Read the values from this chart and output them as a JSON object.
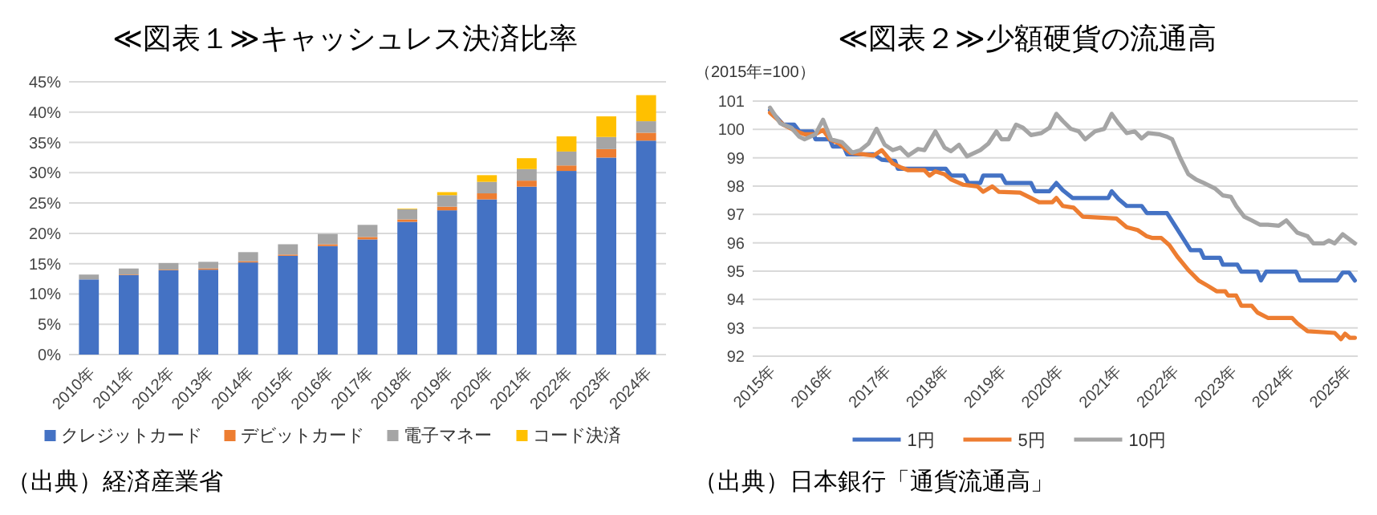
{
  "chart_data": [
    {
      "type": "bar",
      "title": "≪図表１≫キャッシュレス決済比率",
      "stacked": true,
      "grid": "y",
      "legend": "bottom",
      "categories": [
        "2010年",
        "2011年",
        "2012年",
        "2013年",
        "2014年",
        "2015年",
        "2016年",
        "2017年",
        "2018年",
        "2019年",
        "2020年",
        "2021年",
        "2022年",
        "2023年",
        "2024年"
      ],
      "series": [
        {
          "name": "クレジットカード",
          "color": "#4472c4",
          "values": [
            12.4,
            13.1,
            13.9,
            14.0,
            15.2,
            16.3,
            17.9,
            19.0,
            21.9,
            23.8,
            25.6,
            27.7,
            30.3,
            32.5,
            35.3
          ]
        },
        {
          "name": "デビットカード",
          "color": "#ed7d31",
          "values": [
            null,
            0.1,
            0.1,
            0.2,
            0.2,
            0.2,
            0.3,
            0.4,
            0.4,
            0.6,
            1.0,
            1.0,
            0.9,
            1.4,
            1.3
          ]
        },
        {
          "name": "電子マネー",
          "color": "#a5a5a5",
          "values": [
            0.8,
            1.0,
            1.1,
            1.1,
            1.5,
            1.7,
            1.7,
            2.0,
            1.7,
            1.9,
            1.9,
            1.9,
            2.3,
            2.0,
            1.9
          ]
        },
        {
          "name": "コード決済",
          "color": "#ffc000",
          "values": [
            0,
            0,
            0,
            0,
            0,
            0,
            0,
            0,
            0.1,
            0.5,
            1.1,
            1.8,
            2.5,
            3.4,
            4.3
          ]
        }
      ],
      "ylim": [
        0,
        45
      ],
      "yticks": [
        {
          "value": 0,
          "label": "0%"
        },
        {
          "value": 5,
          "label": "5%"
        },
        {
          "value": 10,
          "label": "10%"
        },
        {
          "value": 15,
          "label": "15%"
        },
        {
          "value": 20,
          "label": "20%"
        },
        {
          "value": 25,
          "label": "25%"
        },
        {
          "value": 30,
          "label": "30%"
        },
        {
          "value": 35,
          "label": "35%"
        },
        {
          "value": 40,
          "label": "40%"
        },
        {
          "value": 45,
          "label": "45%"
        }
      ],
      "annotations": [
        "（出典）経済産業省"
      ]
    },
    {
      "type": "line",
      "title": "≪図表２≫少額硬貨の流通高",
      "ylabel": "（2015年=100）",
      "grid": "y",
      "legend": "bottom",
      "marker": "none",
      "line_style": "solid",
      "series": [
        {
          "name": "1円",
          "color": "#4472c4",
          "x": [
            2015.0,
            2015.23,
            2015.42,
            2015.51,
            2015.74,
            2015.79,
            2016.04,
            2016.09,
            2016.28,
            2016.34,
            2016.8,
            2016.94,
            2017.17,
            2017.22,
            2018.05,
            2018.14,
            2018.37,
            2018.44,
            2018.65,
            2018.7,
            2019.02,
            2019.09,
            2019.53,
            2019.6,
            2019.85,
            2019.97,
            2020.08,
            2020.25,
            2020.87,
            2020.93,
            2021.05,
            2021.19,
            2021.45,
            2021.54,
            2021.89,
            2022.3,
            2022.47,
            2022.53,
            2022.81,
            2022.86,
            2023.11,
            2023.18,
            2023.46,
            2023.52,
            2023.61,
            2024.13,
            2024.2,
            2024.84,
            2024.94,
            2025.05,
            2025.15
          ],
          "values": [
            100.68,
            100.17,
            100.17,
            99.93,
            99.93,
            99.65,
            99.65,
            99.4,
            99.4,
            99.12,
            99.12,
            98.93,
            98.89,
            98.61,
            98.61,
            98.37,
            98.37,
            98.11,
            98.11,
            98.37,
            98.37,
            98.11,
            98.11,
            97.82,
            97.82,
            98.11,
            97.86,
            97.58,
            97.58,
            97.82,
            97.54,
            97.3,
            97.3,
            97.05,
            97.05,
            95.74,
            95.74,
            95.47,
            95.47,
            95.23,
            95.23,
            94.98,
            94.98,
            94.67,
            94.98,
            94.98,
            94.67,
            94.67,
            94.95,
            94.95,
            94.67
          ]
        },
        {
          "name": "5円",
          "color": "#ed7d31",
          "x": [
            2015.0,
            2015.23,
            2015.46,
            2015.6,
            2015.79,
            2015.92,
            2016.04,
            2016.2,
            2016.39,
            2016.8,
            2016.94,
            2017.13,
            2017.26,
            2017.4,
            2017.68,
            2017.77,
            2017.87,
            2018.03,
            2018.14,
            2018.35,
            2018.6,
            2018.7,
            2018.86,
            2018.97,
            2019.34,
            2019.53,
            2019.67,
            2019.9,
            2019.97,
            2020.08,
            2020.27,
            2020.43,
            2021.01,
            2021.19,
            2021.38,
            2021.54,
            2021.64,
            2021.79,
            2021.93,
            2022.07,
            2022.26,
            2022.44,
            2022.6,
            2022.75,
            2022.9,
            2022.95,
            2023.09,
            2023.18,
            2023.36,
            2023.46,
            2023.64,
            2024.06,
            2024.15,
            2024.33,
            2024.8,
            2024.91,
            2024.98,
            2025.06,
            2025.15
          ],
          "values": [
            100.59,
            100.17,
            99.93,
            99.83,
            99.83,
            99.98,
            99.65,
            99.5,
            99.18,
            99.08,
            99.27,
            98.8,
            98.67,
            98.56,
            98.56,
            98.37,
            98.52,
            98.42,
            98.24,
            98.05,
            97.99,
            97.8,
            97.99,
            97.8,
            97.77,
            97.58,
            97.43,
            97.43,
            97.58,
            97.3,
            97.24,
            96.92,
            96.86,
            96.55,
            96.45,
            96.23,
            96.17,
            96.17,
            95.92,
            95.51,
            95.04,
            94.67,
            94.48,
            94.29,
            94.29,
            94.14,
            94.14,
            93.78,
            93.78,
            93.54,
            93.35,
            93.35,
            93.16,
            92.88,
            92.82,
            92.6,
            92.79,
            92.65,
            92.65
          ]
        },
        {
          "name": "10円",
          "color": "#a5a5a5",
          "x": [
            2015.0,
            2015.18,
            2015.37,
            2015.51,
            2015.6,
            2015.79,
            2015.92,
            2016.06,
            2016.25,
            2016.43,
            2016.57,
            2016.71,
            2016.85,
            2016.99,
            2017.13,
            2017.26,
            2017.4,
            2017.57,
            2017.68,
            2017.87,
            2018.03,
            2018.14,
            2018.28,
            2018.42,
            2018.65,
            2018.79,
            2018.93,
            2019.02,
            2019.14,
            2019.27,
            2019.39,
            2019.53,
            2019.71,
            2019.85,
            2019.97,
            2020.08,
            2020.22,
            2020.36,
            2020.47,
            2020.64,
            2020.8,
            2020.93,
            2021.05,
            2021.19,
            2021.33,
            2021.45,
            2021.56,
            2021.75,
            2021.89,
            2021.98,
            2022.12,
            2022.26,
            2022.39,
            2022.53,
            2022.72,
            2022.86,
            2023.0,
            2023.09,
            2023.23,
            2023.36,
            2023.5,
            2023.64,
            2023.83,
            2023.96,
            2024.15,
            2024.33,
            2024.43,
            2024.61,
            2024.7,
            2024.8,
            2024.94,
            2025.15
          ],
          "values": [
            100.77,
            100.21,
            100.06,
            99.74,
            99.65,
            99.83,
            100.34,
            99.65,
            99.55,
            99.18,
            99.27,
            99.5,
            100.02,
            99.46,
            99.27,
            99.36,
            99.08,
            99.31,
            99.27,
            99.93,
            99.36,
            99.23,
            99.46,
            99.05,
            99.27,
            99.5,
            99.93,
            99.65,
            99.65,
            100.17,
            100.06,
            99.8,
            99.87,
            100.06,
            100.55,
            100.3,
            100.02,
            99.93,
            99.65,
            99.93,
            100.02,
            100.55,
            100.21,
            99.87,
            99.93,
            99.68,
            99.87,
            99.83,
            99.74,
            99.65,
            98.99,
            98.42,
            98.24,
            98.11,
            97.92,
            97.67,
            97.62,
            97.3,
            96.92,
            96.79,
            96.64,
            96.64,
            96.6,
            96.79,
            96.36,
            96.23,
            95.98,
            95.98,
            96.08,
            95.98,
            96.3,
            95.98
          ]
        }
      ],
      "xlim": [
        2014.7,
        2025.2
      ],
      "xticks": [
        {
          "value": 2015,
          "label": "2015年"
        },
        {
          "value": 2016,
          "label": "2016年"
        },
        {
          "value": 2017,
          "label": "2017年"
        },
        {
          "value": 2018,
          "label": "2018年"
        },
        {
          "value": 2019,
          "label": "2019年"
        },
        {
          "value": 2020,
          "label": "2020年"
        },
        {
          "value": 2021,
          "label": "2021年"
        },
        {
          "value": 2022,
          "label": "2022年"
        },
        {
          "value": 2023,
          "label": "2023年"
        },
        {
          "value": 2024,
          "label": "2024年"
        },
        {
          "value": 2025,
          "label": "2025年"
        }
      ],
      "ylim": [
        92,
        101
      ],
      "yticks": [
        92,
        93,
        94,
        95,
        96,
        97,
        98,
        99,
        100,
        101
      ],
      "annotations": [
        "（出典）日本銀行「通貨流通高」"
      ]
    }
  ]
}
